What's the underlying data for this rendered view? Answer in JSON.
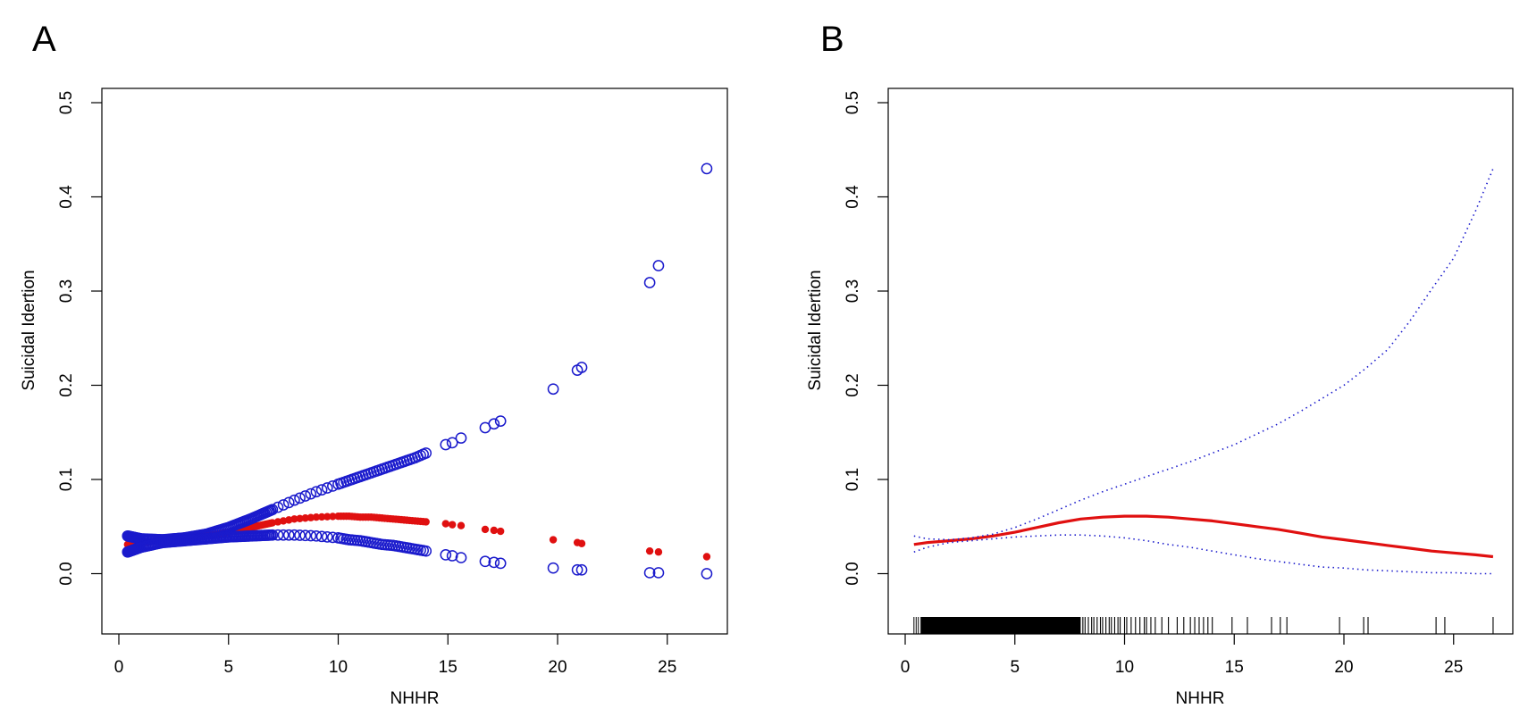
{
  "figure": {
    "panels": [
      "A",
      "B"
    ]
  },
  "colors": {
    "blue": "#1a1acc",
    "red": "#e01010",
    "rug": "#000000",
    "axis": "#000000"
  },
  "chart_data": [
    {
      "panel": "A",
      "type": "scatter",
      "title": "",
      "xlabel": "NHHR",
      "ylabel": "Suicidal Idertion",
      "xlim": [
        -0.5,
        28
      ],
      "ylim": [
        -0.065,
        0.52
      ],
      "xticks": [
        0,
        5,
        10,
        15,
        20,
        25
      ],
      "yticks": [
        0.0,
        0.1,
        0.2,
        0.3,
        0.4,
        0.5
      ],
      "ytick_labels": [
        "0.0",
        "0.1",
        "0.2",
        "0.3",
        "0.4",
        "0.5"
      ],
      "grid": false,
      "legend": "none",
      "series": [
        {
          "name": "Fitted (filled red points)",
          "marker": "filled-circle",
          "color": "red",
          "x": [
            0.4,
            1,
            2,
            3,
            4,
            5,
            6,
            7,
            8,
            9,
            10,
            10.5,
            11,
            11.5,
            12,
            12.5,
            13,
            13.5,
            14,
            14.9,
            15.2,
            15.6,
            16.7,
            17.1,
            17.4,
            19.8,
            20.9,
            21.1,
            24.2,
            24.6,
            26.8
          ],
          "y": [
            0.031,
            0.033,
            0.035,
            0.037,
            0.04,
            0.044,
            0.049,
            0.054,
            0.058,
            0.06,
            0.061,
            0.061,
            0.06,
            0.06,
            0.059,
            0.058,
            0.057,
            0.056,
            0.055,
            0.053,
            0.052,
            0.051,
            0.047,
            0.046,
            0.045,
            0.036,
            0.033,
            0.032,
            0.024,
            0.023,
            0.018
          ]
        },
        {
          "name": "Upper 95% CI (open blue circles)",
          "marker": "open-circle",
          "color": "blue",
          "x": [
            0.4,
            1,
            2,
            3,
            4,
            5,
            6,
            7,
            8,
            9,
            10,
            10.5,
            11,
            11.5,
            12,
            12.5,
            13,
            13.5,
            14,
            14.9,
            15.2,
            15.6,
            16.7,
            17.1,
            17.4,
            19.8,
            20.9,
            21.1,
            24.2,
            24.6,
            26.8
          ],
          "y": [
            0.04,
            0.037,
            0.036,
            0.038,
            0.042,
            0.049,
            0.058,
            0.068,
            0.078,
            0.087,
            0.095,
            0.099,
            0.103,
            0.107,
            0.111,
            0.115,
            0.119,
            0.123,
            0.128,
            0.137,
            0.139,
            0.144,
            0.155,
            0.159,
            0.162,
            0.196,
            0.216,
            0.219,
            0.309,
            0.327,
            0.43
          ]
        },
        {
          "name": "Lower 95% CI (open blue circles)",
          "marker": "open-circle",
          "color": "blue",
          "x": [
            0.4,
            1,
            2,
            3,
            4,
            5,
            6,
            7,
            8,
            9,
            10,
            10.5,
            11,
            11.5,
            12,
            12.5,
            13,
            13.5,
            14,
            14.9,
            15.2,
            15.6,
            16.7,
            17.1,
            17.4,
            19.8,
            20.9,
            21.1,
            24.2,
            24.6,
            26.8
          ],
          "y": [
            0.023,
            0.028,
            0.033,
            0.035,
            0.037,
            0.039,
            0.04,
            0.041,
            0.041,
            0.04,
            0.038,
            0.036,
            0.035,
            0.033,
            0.031,
            0.03,
            0.028,
            0.026,
            0.024,
            0.02,
            0.019,
            0.017,
            0.013,
            0.012,
            0.011,
            0.006,
            0.004,
            0.004,
            0.001,
            0.001,
            0.0
          ]
        }
      ]
    },
    {
      "panel": "B",
      "type": "line",
      "title": "",
      "xlabel": "NHHR",
      "ylabel": "Suicidal Idertion",
      "xlim": [
        -0.5,
        28
      ],
      "ylim": [
        -0.065,
        0.52
      ],
      "xticks": [
        0,
        5,
        10,
        15,
        20,
        25
      ],
      "yticks": [
        0.0,
        0.1,
        0.2,
        0.3,
        0.4,
        0.5
      ],
      "ytick_labels": [
        "0.0",
        "0.1",
        "0.2",
        "0.3",
        "0.4",
        "0.5"
      ],
      "grid": false,
      "legend": "none",
      "series": [
        {
          "name": "Fitted smooth curve",
          "style": "solid",
          "color": "red",
          "x": [
            0.4,
            1,
            2,
            3,
            4,
            5,
            6,
            7,
            8,
            9,
            10,
            11,
            12,
            13,
            14,
            15,
            16,
            17,
            18,
            19,
            20,
            21,
            22,
            23,
            24,
            25,
            26,
            26.8
          ],
          "y": [
            0.031,
            0.033,
            0.035,
            0.037,
            0.04,
            0.044,
            0.049,
            0.054,
            0.058,
            0.06,
            0.061,
            0.061,
            0.06,
            0.058,
            0.056,
            0.053,
            0.05,
            0.047,
            0.043,
            0.039,
            0.036,
            0.033,
            0.03,
            0.027,
            0.024,
            0.022,
            0.02,
            0.018
          ]
        },
        {
          "name": "Upper 95% CI",
          "style": "dotted",
          "color": "blue",
          "x": [
            0.4,
            1,
            2,
            3,
            4,
            5,
            6,
            7,
            8,
            9,
            10,
            11,
            12,
            13,
            14,
            15,
            16,
            17,
            18,
            19,
            20,
            21,
            22,
            23,
            24,
            25,
            26,
            26.8
          ],
          "y": [
            0.04,
            0.037,
            0.036,
            0.038,
            0.042,
            0.049,
            0.058,
            0.068,
            0.078,
            0.087,
            0.095,
            0.103,
            0.111,
            0.119,
            0.128,
            0.137,
            0.148,
            0.159,
            0.172,
            0.186,
            0.2,
            0.218,
            0.238,
            0.268,
            0.302,
            0.335,
            0.385,
            0.43
          ]
        },
        {
          "name": "Lower 95% CI",
          "style": "dotted",
          "color": "blue",
          "x": [
            0.4,
            1,
            2,
            3,
            4,
            5,
            6,
            7,
            8,
            9,
            10,
            11,
            12,
            13,
            14,
            15,
            16,
            17,
            18,
            19,
            20,
            21,
            22,
            23,
            24,
            25,
            26,
            26.8
          ],
          "y": [
            0.023,
            0.028,
            0.033,
            0.035,
            0.037,
            0.039,
            0.04,
            0.041,
            0.041,
            0.04,
            0.038,
            0.035,
            0.031,
            0.028,
            0.024,
            0.02,
            0.016,
            0.013,
            0.01,
            0.007,
            0.006,
            0.004,
            0.003,
            0.002,
            0.001,
            0.001,
            0.0,
            0.0
          ]
        }
      ],
      "rug": {
        "dense_range": [
          0.4,
          8.0
        ],
        "x": [
          8.1,
          8.2,
          8.35,
          8.5,
          8.6,
          8.75,
          8.9,
          9.0,
          9.15,
          9.3,
          9.4,
          9.55,
          9.7,
          9.8,
          10.0,
          10.1,
          10.3,
          10.5,
          10.7,
          10.9,
          11.0,
          11.2,
          11.4,
          11.7,
          12.0,
          12.4,
          12.7,
          13.0,
          13.2,
          13.4,
          13.6,
          13.8,
          14.0,
          14.9,
          15.6,
          16.7,
          17.1,
          17.4,
          19.8,
          20.9,
          21.1,
          24.2,
          24.6,
          26.8
        ]
      }
    }
  ]
}
